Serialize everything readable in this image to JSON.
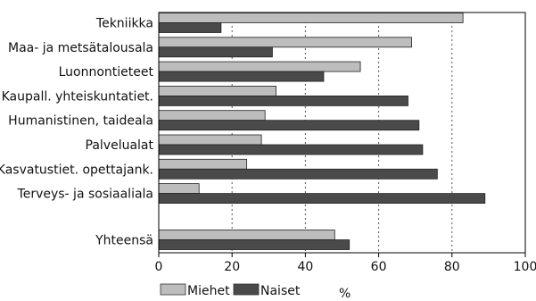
{
  "chart_data": {
    "type": "bar",
    "orientation": "horizontal",
    "categories": [
      "Tekniikka",
      "Maa- ja metsätalousala",
      "Luonnontieteet",
      "Kaupall. yhteiskuntatiet.",
      "Humanistinen, taideala",
      "Palvelualat",
      "Kasvatustiet. opettajank.",
      "Terveys- ja sosiaaliala",
      "Yhteensä"
    ],
    "series": [
      {
        "name": "Miehet",
        "values": [
          83,
          69,
          55,
          32,
          29,
          28,
          24,
          11,
          48
        ],
        "color": "#bdbdbd"
      },
      {
        "name": "Naiset",
        "values": [
          17,
          31,
          45,
          68,
          71,
          72,
          76,
          89,
          52
        ],
        "color": "#4a4a4a"
      }
    ],
    "xlim": [
      0,
      100
    ],
    "xticks": [
      "0",
      "20",
      "40",
      "60",
      "80",
      "100"
    ],
    "xlabel": "%",
    "grid": "vertical dotted",
    "legend": "bottom"
  }
}
